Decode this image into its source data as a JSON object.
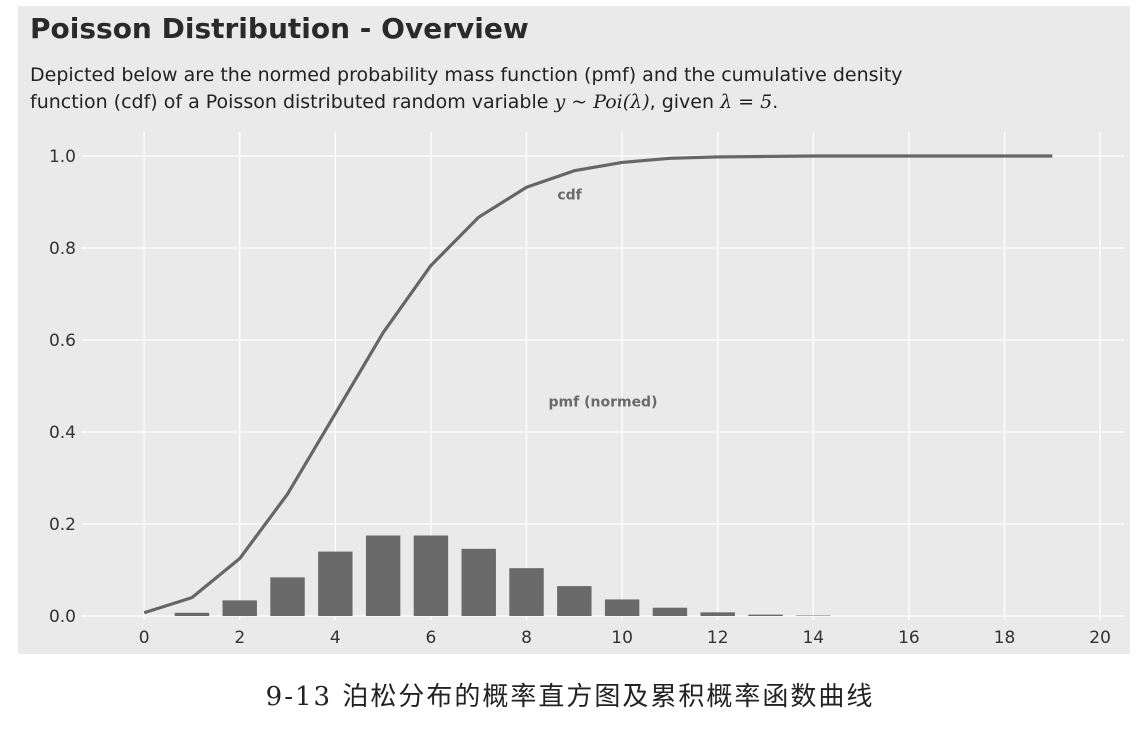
{
  "chart_data": {
    "type": "bar",
    "title": "Poisson Distribution - Overview",
    "subtitle_line1": "Depicted below are the normed probability mass function (pmf) and the cumulative density",
    "subtitle_line2_prefix": "function (cdf) of a Poisson distributed random variable ",
    "subtitle_math_var": "y ~ Poi(λ)",
    "subtitle_line2_suffix": ", given ",
    "subtitle_math_param": "λ = 5",
    "subtitle_end": ".",
    "xlim": [
      -1.3,
      20.5
    ],
    "ylim": [
      0.0,
      1.0
    ],
    "xticks": [
      0,
      2,
      4,
      6,
      8,
      10,
      12,
      14,
      16,
      18,
      20
    ],
    "yticks": [
      0.0,
      0.2,
      0.4,
      0.6,
      0.8,
      1.0
    ],
    "ytick_labels": [
      "0.0",
      "0.2",
      "0.4",
      "0.6",
      "0.8",
      "1.0"
    ],
    "grid": true,
    "series": [
      {
        "type": "bar",
        "x": [
          0,
          1,
          2,
          3,
          4,
          5,
          6,
          7,
          8,
          9,
          10,
          11,
          12,
          13,
          14,
          15,
          16,
          17,
          18,
          19
        ],
        "values": [
          0.007,
          0.034,
          0.084,
          0.14,
          0.175,
          0.175,
          0.146,
          0.104,
          0.065,
          0.036,
          0.018,
          0.008,
          0.003,
          0.001,
          0.0,
          0.0,
          0.0,
          0.0,
          0.0,
          0.0
        ],
        "color": "#6a6a6a"
      },
      {
        "type": "line",
        "x": [
          0,
          1,
          2,
          3,
          4,
          5,
          6,
          7,
          8,
          9,
          10,
          11,
          12,
          13,
          14,
          15,
          16,
          17,
          18,
          19
        ],
        "values": [
          0.007,
          0.04,
          0.125,
          0.265,
          0.44,
          0.616,
          0.762,
          0.867,
          0.932,
          0.968,
          0.986,
          0.995,
          0.998,
          0.999,
          1.0,
          1.0,
          1.0,
          1.0,
          1.0,
          1.0
        ],
        "color": "#666666"
      }
    ],
    "annotations": [
      {
        "text": "cdf",
        "x": 8.9,
        "y": 0.905
      },
      {
        "text": "pmf (normed)",
        "x": 9.6,
        "y": 0.455
      }
    ]
  },
  "caption": "9-13  泊松分布的概率直方图及累积概率函数曲线",
  "colors": {
    "panel_bg": "#eaeaea",
    "grid": "#ffffff",
    "bar": "#6a6a6a",
    "line": "#666666"
  }
}
